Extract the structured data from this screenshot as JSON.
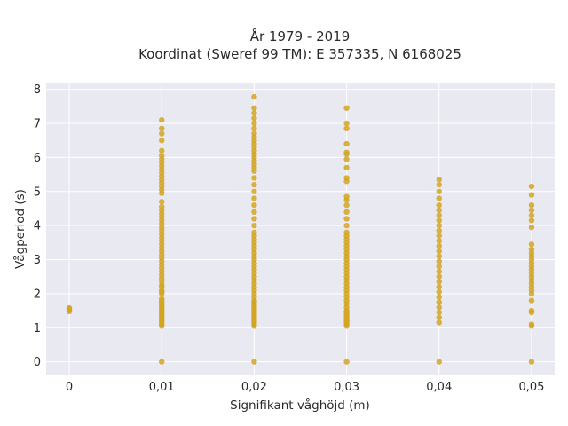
{
  "chart_data": {
    "type": "scatter",
    "title": "År 1979 - 2019",
    "subtitle": "Koordinat (Sweref 99 TM): E 357335, N 6168025",
    "xlabel": "Signifikant våghöjd (m)",
    "ylabel": "Vågperiod (s)",
    "xlim": [
      -0.0025,
      0.0525
    ],
    "ylim": [
      -0.4,
      8.2
    ],
    "x_ticks": [
      0,
      0.01,
      0.02,
      0.03,
      0.04,
      0.05
    ],
    "x_tick_labels": [
      "0",
      "0,01",
      "0,02",
      "0,03",
      "0,04",
      "0,05"
    ],
    "y_ticks": [
      0,
      1,
      2,
      3,
      4,
      5,
      6,
      7,
      8
    ],
    "y_tick_labels": [
      "0",
      "1",
      "2",
      "3",
      "4",
      "5",
      "6",
      "7",
      "8"
    ],
    "grid": true,
    "background": "#e9e9f1",
    "marker_color": "#d4a421",
    "groups": [
      {
        "x": 0.0,
        "y": [
          1.48,
          1.52,
          1.55,
          1.58
        ]
      },
      {
        "x": 0.01,
        "y": [
          0.0,
          1.05,
          1.1,
          1.15,
          1.2,
          1.25,
          1.3,
          1.35,
          1.4,
          1.45,
          1.5,
          1.55,
          1.6,
          1.65,
          1.7,
          1.75,
          1.8,
          1.85,
          2.0,
          2.05,
          2.1,
          2.2,
          2.25,
          2.35,
          2.45,
          2.55,
          2.65,
          2.75,
          2.85,
          2.95,
          3.05,
          3.15,
          3.25,
          3.35,
          3.45,
          3.55,
          3.65,
          3.75,
          3.85,
          3.95,
          4.05,
          4.15,
          4.25,
          4.35,
          4.45,
          4.55,
          4.7,
          4.95,
          5.05,
          5.15,
          5.25,
          5.35,
          5.45,
          5.55,
          5.65,
          5.75,
          5.85,
          5.95,
          6.05,
          6.2,
          6.5,
          6.7,
          6.85,
          7.1
        ]
      },
      {
        "x": 0.02,
        "y": [
          0.0,
          1.05,
          1.1,
          1.15,
          1.2,
          1.25,
          1.3,
          1.35,
          1.4,
          1.45,
          1.5,
          1.55,
          1.6,
          1.65,
          1.7,
          1.75,
          1.8,
          1.9,
          2.0,
          2.1,
          2.2,
          2.3,
          2.4,
          2.5,
          2.6,
          2.7,
          2.8,
          2.9,
          3.0,
          3.1,
          3.2,
          3.3,
          3.4,
          3.5,
          3.6,
          3.7,
          3.8,
          4.0,
          4.2,
          4.4,
          4.6,
          4.8,
          5.0,
          5.2,
          5.4,
          5.6,
          5.7,
          5.8,
          5.9,
          6.0,
          6.1,
          6.2,
          6.3,
          6.4,
          6.5,
          6.6,
          6.7,
          6.85,
          7.0,
          7.15,
          7.3,
          7.45,
          7.78
        ]
      },
      {
        "x": 0.03,
        "y": [
          0.0,
          1.05,
          1.1,
          1.15,
          1.2,
          1.25,
          1.3,
          1.35,
          1.4,
          1.45,
          1.5,
          1.6,
          1.7,
          1.8,
          1.9,
          2.0,
          2.1,
          2.2,
          2.3,
          2.4,
          2.5,
          2.6,
          2.7,
          2.8,
          2.9,
          3.0,
          3.1,
          3.2,
          3.3,
          3.4,
          3.5,
          3.6,
          3.7,
          3.8,
          4.0,
          4.2,
          4.4,
          4.6,
          4.75,
          4.85,
          5.3,
          5.4,
          5.7,
          5.95,
          6.1,
          6.15,
          6.4,
          6.85,
          7.0,
          7.45
        ]
      },
      {
        "x": 0.04,
        "y": [
          0.0,
          1.15,
          1.3,
          1.45,
          1.6,
          1.75,
          1.9,
          2.05,
          2.2,
          2.35,
          2.5,
          2.65,
          2.8,
          2.95,
          3.1,
          3.25,
          3.4,
          3.55,
          3.7,
          3.85,
          4.0,
          4.15,
          4.3,
          4.45,
          4.6,
          4.8,
          5.0,
          5.2,
          5.35
        ]
      },
      {
        "x": 0.05,
        "y": [
          0.0,
          1.05,
          1.1,
          1.45,
          1.5,
          1.8,
          2.0,
          2.1,
          2.2,
          2.3,
          2.4,
          2.5,
          2.6,
          2.7,
          2.8,
          2.9,
          3.0,
          3.1,
          3.2,
          3.3,
          3.45,
          3.95,
          4.15,
          4.3,
          4.45,
          4.6,
          4.9,
          5.15
        ]
      }
    ]
  }
}
